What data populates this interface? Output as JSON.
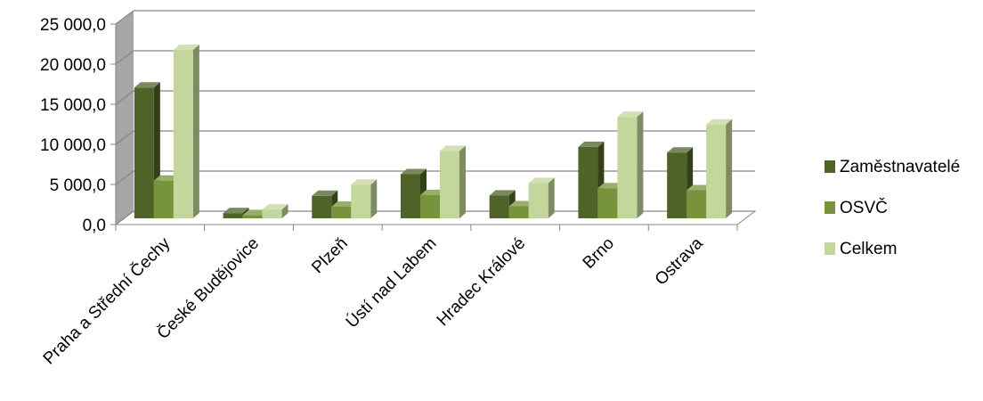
{
  "chart_data": {
    "type": "bar",
    "categories": [
      "Praha a Střední Čechy",
      "České Budějovice",
      "Plzeň",
      "Ústí nad Labem",
      "Hradec Králové",
      "Brno",
      "Ostrava"
    ],
    "series": [
      {
        "name": "Zaměstnavatelé",
        "values": [
          16300,
          650,
          2800,
          5500,
          2850,
          8900,
          8200
        ]
      },
      {
        "name": "OSVČ",
        "values": [
          4700,
          400,
          1450,
          2900,
          1500,
          3750,
          3500
        ]
      },
      {
        "name": "Celkem",
        "values": [
          21000,
          1100,
          4200,
          8400,
          4400,
          12650,
          11700
        ]
      }
    ],
    "yticks": [
      "0,0",
      "5 000,0",
      "10 000,0",
      "15 000,0",
      "20 000,0",
      "25 000,0"
    ],
    "ylim": [
      0,
      25000
    ],
    "grid": true,
    "legend_position": "right",
    "colors": {
      "Zaměstnavatelé": "#4f6228",
      "OSVČ": "#77933c",
      "Celkem": "#c3d69b",
      "wall": "#a6a6a6",
      "gridline": "#868686"
    }
  }
}
